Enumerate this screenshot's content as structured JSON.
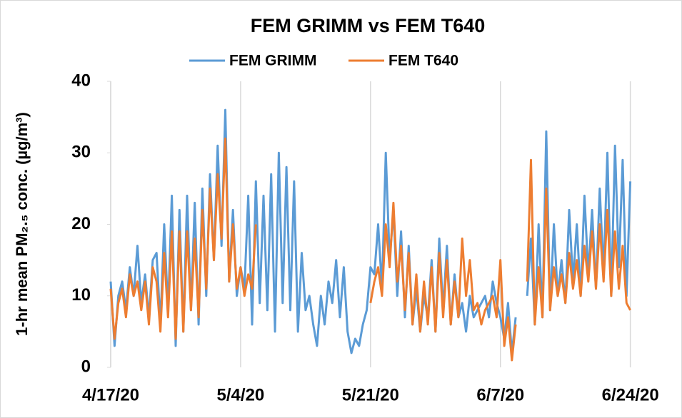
{
  "chart_data": {
    "type": "line",
    "title": "FEM GRIMM vs FEM T640",
    "y_label": "1-hr mean PM₂.₅ conc. (µg/m³)",
    "legend": "top",
    "grid": "x",
    "xlim": [
      0,
      68.5
    ],
    "xticks": [
      {
        "value": 0,
        "label": "4/17/20"
      },
      {
        "value": 17,
        "label": "5/4/20"
      },
      {
        "value": 34,
        "label": "5/21/20"
      },
      {
        "value": 51,
        "label": "6/7/20"
      },
      {
        "value": 68,
        "label": "6/24/20"
      }
    ],
    "ylim": [
      0,
      40
    ],
    "yticks": [
      0,
      10,
      20,
      30,
      40
    ],
    "x": [
      0,
      0.5,
      1,
      1.5,
      2,
      2.5,
      3,
      3.5,
      4,
      4.5,
      5,
      5.5,
      6,
      6.5,
      7,
      7.5,
      8,
      8.5,
      9,
      9.5,
      10,
      10.5,
      11,
      11.5,
      12,
      12.5,
      13,
      13.5,
      14,
      14.5,
      15,
      15.5,
      16,
      16.5,
      17,
      17.5,
      18,
      18.5,
      19,
      19.5,
      20,
      20.5,
      21,
      21.5,
      22,
      22.5,
      23,
      23.5,
      24,
      24.5,
      25,
      25.5,
      26,
      26.5,
      27,
      27.5,
      28,
      28.5,
      29,
      29.5,
      30,
      30.5,
      31,
      31.5,
      32,
      32.5,
      33,
      33.5,
      34,
      34.5,
      35,
      35.5,
      36,
      36.5,
      37,
      37.5,
      38,
      38.5,
      39,
      39.5,
      40,
      40.5,
      41,
      41.5,
      42,
      42.5,
      43,
      43.5,
      44,
      44.5,
      45,
      45.5,
      46,
      46.5,
      47,
      47.5,
      48,
      48.5,
      49,
      49.5,
      50,
      50.5,
      51,
      51.5,
      52,
      52.5,
      53,
      53.5,
      54,
      54.5,
      55,
      55.5,
      56,
      56.5,
      57,
      57.5,
      58,
      58.5,
      59,
      59.5,
      60,
      60.5,
      61,
      61.5,
      62,
      62.5,
      63,
      63.5,
      64,
      64.5,
      65,
      65.5,
      66,
      66.5,
      67,
      67.5,
      68
    ],
    "series": [
      {
        "name": "FEM GRIMM",
        "color": "#5b9bd5",
        "values": [
          12,
          3,
          10,
          12,
          8,
          14,
          10,
          17,
          9,
          13,
          7,
          15,
          16,
          6,
          20,
          8,
          24,
          3,
          22,
          5,
          24,
          8,
          23,
          6,
          25,
          10,
          27,
          15,
          31,
          17,
          36,
          12,
          22,
          10,
          14,
          11,
          24,
          6,
          26,
          9,
          24,
          8,
          27,
          5,
          30,
          9,
          28,
          8,
          26,
          5,
          16,
          8,
          10,
          6,
          3,
          10,
          6,
          12,
          9,
          15,
          7,
          14,
          5,
          2,
          4,
          3,
          6,
          8,
          14,
          13,
          20,
          11,
          30,
          15,
          22,
          10,
          19,
          7,
          17,
          6,
          11,
          5,
          10,
          7,
          15,
          5,
          18,
          8,
          17,
          6,
          13,
          7,
          9,
          5,
          10,
          7,
          8,
          9,
          10,
          7,
          12,
          9,
          7,
          4,
          9,
          2,
          7,
          null,
          null,
          10,
          18,
          6,
          20,
          7,
          33,
          8,
          20,
          10,
          15,
          9,
          22,
          12,
          20,
          10,
          24,
          13,
          22,
          11,
          25,
          13,
          30,
          10,
          31,
          14,
          29,
          10,
          26
        ]
      },
      {
        "name": "FEM T640",
        "color": "#ed7d31",
        "values": [
          11,
          4,
          9,
          11,
          7,
          13,
          10,
          12,
          8,
          12,
          6,
          14,
          12,
          5,
          16,
          7,
          19,
          4,
          19,
          5,
          19,
          8,
          18,
          7,
          22,
          11,
          25,
          15,
          27,
          18,
          32,
          12,
          20,
          11,
          14,
          10,
          13,
          11,
          20,
          null,
          null,
          null,
          null,
          null,
          null,
          null,
          null,
          null,
          null,
          null,
          null,
          null,
          null,
          null,
          null,
          null,
          null,
          null,
          null,
          null,
          null,
          null,
          null,
          null,
          null,
          null,
          null,
          null,
          9,
          12,
          14,
          10,
          20,
          14,
          23,
          12,
          17,
          8,
          16,
          6,
          13,
          5,
          12,
          6,
          14,
          5,
          16,
          7,
          15,
          6,
          12,
          7,
          18,
          10,
          15,
          8,
          9,
          6,
          8,
          9,
          10,
          7,
          15,
          3,
          7,
          1,
          6,
          null,
          null,
          12,
          29,
          6,
          14,
          7,
          25,
          8,
          14,
          10,
          13,
          9,
          16,
          11,
          15,
          10,
          17,
          12,
          19,
          11,
          20,
          12,
          22,
          10,
          19,
          11,
          17,
          9,
          8
        ]
      }
    ]
  }
}
